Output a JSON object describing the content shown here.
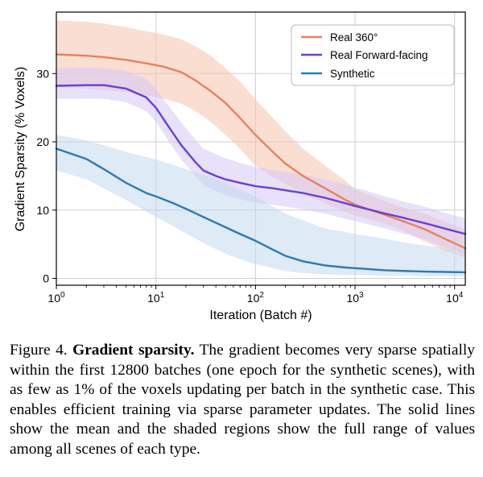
{
  "chart_data": {
    "type": "line",
    "title": "",
    "xlabel": "Iteration (Batch #)",
    "ylabel": "Gradient Sparsity (% Voxels)",
    "xscale": "log",
    "xlim": [
      1,
      12800
    ],
    "ylim": [
      -1,
      39
    ],
    "x_ticks": [
      {
        "value": 1,
        "base": "10",
        "exp": "0"
      },
      {
        "value": 10,
        "base": "10",
        "exp": "1"
      },
      {
        "value": 100,
        "base": "10",
        "exp": "2"
      },
      {
        "value": 1000,
        "base": "10",
        "exp": "3"
      },
      {
        "value": 10000,
        "base": "10",
        "exp": "4"
      }
    ],
    "y_ticks": [
      0,
      10,
      20,
      30
    ],
    "grid": true,
    "legend_position": "top-right",
    "series": [
      {
        "name": "Real 360°",
        "color": "#e8805f",
        "band_color": "#f7c3ad",
        "x": [
          1,
          2,
          3,
          5,
          8,
          12,
          18,
          25,
          35,
          50,
          70,
          100,
          150,
          200,
          300,
          500,
          800,
          1000,
          2000,
          3000,
          5000,
          8000,
          12800
        ],
        "mean": [
          32.8,
          32.6,
          32.4,
          32.0,
          31.5,
          31.0,
          30.2,
          29.0,
          27.5,
          25.7,
          23.5,
          21.0,
          18.5,
          16.8,
          15.0,
          13.2,
          11.5,
          10.8,
          9.3,
          8.4,
          7.2,
          5.8,
          4.4
        ],
        "upper": [
          37.8,
          37.6,
          37.3,
          36.8,
          36.2,
          35.7,
          35.0,
          34.0,
          32.7,
          30.8,
          28.8,
          26.2,
          23.5,
          21.5,
          19.0,
          16.5,
          14.3,
          13.0,
          11.3,
          10.4,
          9.5,
          8.3,
          7.2
        ],
        "lower": [
          28.0,
          27.8,
          27.6,
          27.3,
          26.8,
          26.3,
          25.6,
          24.5,
          23.0,
          21.0,
          19.0,
          16.5,
          14.8,
          13.8,
          12.5,
          11.0,
          9.7,
          9.2,
          8.0,
          7.0,
          5.4,
          4.1,
          3.0
        ]
      },
      {
        "name": "Real Forward-facing",
        "color": "#6a3fd8",
        "band_color": "#d6c8f6",
        "x": [
          1,
          2,
          3,
          5,
          8,
          10,
          13,
          18,
          25,
          30,
          40,
          50,
          70,
          100,
          150,
          200,
          300,
          500,
          800,
          1000,
          2000,
          3000,
          5000,
          8000,
          12800
        ],
        "mean": [
          28.2,
          28.3,
          28.3,
          27.8,
          26.5,
          25.0,
          22.5,
          19.5,
          17.0,
          15.8,
          15.0,
          14.5,
          14.0,
          13.5,
          13.2,
          12.9,
          12.5,
          11.8,
          11.0,
          10.6,
          9.5,
          8.9,
          8.1,
          7.3,
          6.5
        ],
        "upper": [
          30.8,
          30.9,
          30.8,
          30.4,
          29.2,
          27.8,
          25.5,
          22.8,
          20.3,
          19.0,
          18.2,
          17.6,
          16.9,
          16.3,
          15.9,
          15.6,
          15.2,
          14.5,
          13.7,
          13.3,
          12.0,
          11.3,
          10.5,
          9.6,
          8.8
        ],
        "lower": [
          26.3,
          26.3,
          26.3,
          25.8,
          24.5,
          22.9,
          20.4,
          17.4,
          15.0,
          13.6,
          12.8,
          12.2,
          11.6,
          11.1,
          10.8,
          10.5,
          10.1,
          9.5,
          8.7,
          8.4,
          7.3,
          6.6,
          5.7,
          4.6,
          3.7
        ]
      },
      {
        "name": "Synthetic",
        "color": "#2f78b4",
        "band_color": "#c2d9ee",
        "x": [
          1,
          2,
          3,
          5,
          8,
          10,
          15,
          20,
          30,
          50,
          70,
          100,
          150,
          200,
          300,
          500,
          800,
          1000,
          2000,
          3000,
          5000,
          8000,
          12800
        ],
        "mean": [
          19.0,
          17.5,
          16.0,
          14.0,
          12.5,
          12.0,
          11.0,
          10.2,
          9.0,
          7.5,
          6.5,
          5.5,
          4.2,
          3.3,
          2.5,
          1.9,
          1.6,
          1.5,
          1.2,
          1.1,
          1.0,
          0.95,
          0.9
        ],
        "upper": [
          21.0,
          20.2,
          19.5,
          18.5,
          17.8,
          17.4,
          16.6,
          16.0,
          15.2,
          14.0,
          13.0,
          12.0,
          10.5,
          9.5,
          8.5,
          7.3,
          6.8,
          6.5,
          5.8,
          5.3,
          4.8,
          4.5,
          4.2
        ],
        "lower": [
          15.8,
          14.5,
          13.2,
          11.5,
          9.8,
          9.0,
          7.6,
          6.6,
          5.2,
          3.6,
          2.8,
          2.1,
          1.5,
          1.1,
          0.8,
          0.6,
          0.5,
          0.5,
          0.4,
          0.4,
          0.3,
          0.3,
          0.3
        ]
      }
    ]
  },
  "caption": {
    "lead": "Figure 4.",
    "bold_title": "Gradient sparsity.",
    "body": "The gradient becomes very sparse spatially within the first 12800 batches (one epoch for the synthetic scenes), with as few as 1% of the voxels updating per batch in the synthetic case. This enables efficient training via sparse parameter updates. The solid lines show the mean and the shaded regions show the full range of values among all scenes of each type."
  }
}
